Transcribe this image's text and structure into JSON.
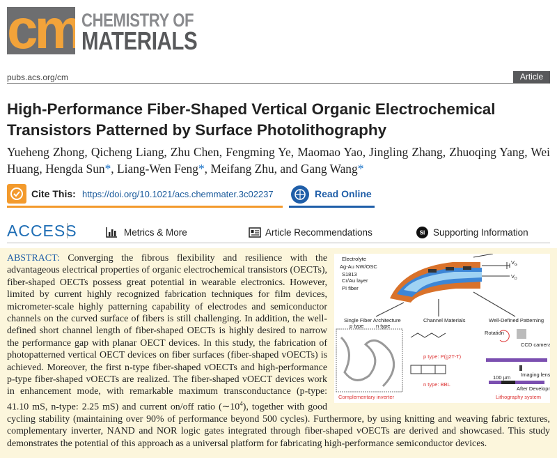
{
  "journal": {
    "logo_mark": "cm",
    "name_line1": "CHEMISTRY OF",
    "name_line2": "MATERIALS",
    "url": "pubs.acs.org/cm",
    "article_type": "Article"
  },
  "title": {
    "line1": "High-Performance Fiber-Shaped Vertical Organic Electrochemical",
    "line2": "Transistors Patterned by Surface Photolithography"
  },
  "authors": {
    "names": [
      {
        "name": "Yueheng Zhong"
      },
      {
        "name": "Qicheng Liang"
      },
      {
        "name": "Zhu Chen"
      },
      {
        "name": "Fengming Ye"
      },
      {
        "name": "Maomao Yao"
      },
      {
        "name": "Jingling Zhang"
      },
      {
        "name": "Zhuoqing Yang"
      },
      {
        "name": "Wei Huang"
      },
      {
        "name": "Hengda Sun",
        "mark": "*"
      },
      {
        "name": "Liang-Wen Feng",
        "mark": "*"
      },
      {
        "name": "Meifang Zhu"
      },
      {
        "name": "Gang Wang",
        "mark": "*"
      }
    ],
    "separator": ",",
    "conjunction": "and"
  },
  "cite": {
    "label": "Cite This:",
    "doi": "https://doi.org/10.1021/acs.chemmater.3c02237",
    "read_online": "Read Online"
  },
  "access": {
    "label": "ACCESS",
    "metrics": "Metrics & More",
    "recommendations": "Article Recommendations",
    "si_icon": "SI",
    "supporting": "Supporting Information"
  },
  "abstract": {
    "label": "ABSTRACT:",
    "text_before": "Converging the fibrous flexibility and resilience with the advantageous electrical properties of organic electrochemical transistors (OECTs), fiber-shaped OECTs possess great potential in wearable electronics. However, limited by current highly recognized fabrication techniques for film devices, micrometer-scale highly patterning capability of electrodes and semiconductor channels on the curved surface of fibers is still challenging. In addition, the well-defined short channel length of fiber-shaped OECTs is highly desired to narrow the performance gap with planar OECT devices. In this study, the fabrication of photopatterned vertical OECT devices on fiber surfaces (fiber-shaped vOECTs) is achieved. Moreover, the first n-type fiber-shaped vOECTs and high-performance p-type fiber-shaped vOECTs are realized. The fiber-shaped vOECT devices work in enhancement mode, with remarkable maximum transconductance (p-type: 41.10 mS, n-type: 2.25 mS) and current on/off ratio (∼10",
    "exponent": "4",
    "text_after": "), together with good cycling stability (maintaining over 90% of performance beyond 500 cycles). Furthermore, by using knitting and weaving fabric textures, complementary inverter, NAND and NOR logic gates integrated through fiber-shaped vOECTs are derived and showcased. This study demonstrates the potential of this approach as a universal platform for fabricating high-performance semiconductor devices."
  },
  "figure": {
    "layers": [
      "Electrolyte",
      "Ag-Au NW/OSC",
      "S1813",
      "Cr/Au layer",
      "PI fiber"
    ],
    "voltage": "V",
    "gate": "G",
    "drain": "D",
    "sections": [
      "Single Fiber Architecture",
      "Channel Materials",
      "Well-Defined Patterning"
    ],
    "p_type": "p type",
    "n_type": "n type",
    "inverter": "Complementary inverter",
    "p_material": "p type: P(g2T-T)",
    "n_material": "n type: BBL",
    "rotation": "Rotation",
    "camera": "CCD camera for alignment",
    "lens": "Imaging lens",
    "scale": "100 µm",
    "after": "After Development",
    "system": "Lithography system"
  }
}
